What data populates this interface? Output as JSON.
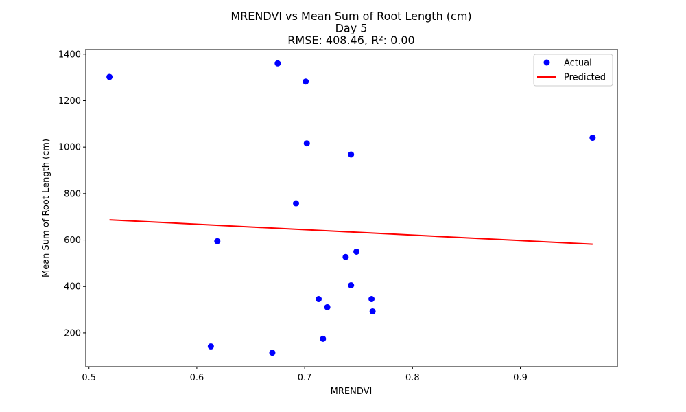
{
  "chart_data": {
    "type": "scatter",
    "title_lines": [
      "MRENDVI vs Mean Sum of Root Length (cm)",
      "Day 5",
      "RMSE: 408.46, R²: 0.00"
    ],
    "xlabel": "MRENDVI",
    "ylabel": "Mean Sum of Root Length (cm)",
    "xlim": [
      0.497,
      0.99
    ],
    "ylim": [
      55,
      1420
    ],
    "xticks": [
      0.5,
      0.6,
      0.7,
      0.8,
      0.9
    ],
    "xtick_labels": [
      "0.5",
      "0.6",
      "0.7",
      "0.8",
      "0.9"
    ],
    "yticks": [
      200,
      400,
      600,
      800,
      1000,
      1200,
      1400
    ],
    "ytick_labels": [
      "200",
      "400",
      "600",
      "800",
      "1000",
      "1200",
      "1400"
    ],
    "grid": false,
    "legend_position": "top-right",
    "series": [
      {
        "name": "Actual",
        "kind": "scatter",
        "color": "#0000ff",
        "points": [
          {
            "x": 0.519,
            "y": 1302
          },
          {
            "x": 0.675,
            "y": 1360
          },
          {
            "x": 0.701,
            "y": 1282
          },
          {
            "x": 0.702,
            "y": 1016
          },
          {
            "x": 0.743,
            "y": 968
          },
          {
            "x": 0.967,
            "y": 1040
          },
          {
            "x": 0.692,
            "y": 758
          },
          {
            "x": 0.619,
            "y": 595
          },
          {
            "x": 0.748,
            "y": 550
          },
          {
            "x": 0.738,
            "y": 527
          },
          {
            "x": 0.743,
            "y": 405
          },
          {
            "x": 0.713,
            "y": 346
          },
          {
            "x": 0.762,
            "y": 346
          },
          {
            "x": 0.721,
            "y": 311
          },
          {
            "x": 0.763,
            "y": 293
          },
          {
            "x": 0.717,
            "y": 175
          },
          {
            "x": 0.613,
            "y": 142
          },
          {
            "x": 0.67,
            "y": 115
          }
        ]
      },
      {
        "name": "Predicted",
        "kind": "line",
        "color": "#ff0000",
        "points": [
          {
            "x": 0.519,
            "y": 687
          },
          {
            "x": 0.967,
            "y": 582
          }
        ]
      }
    ]
  }
}
